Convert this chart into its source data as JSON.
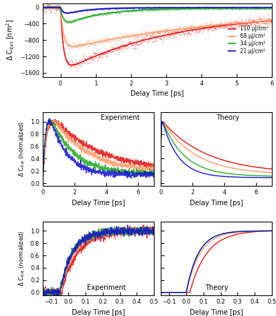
{
  "colors": {
    "red": "#dd1111",
    "orange": "#ff9966",
    "green": "#22aa22",
    "blue": "#1111cc"
  },
  "legend_labels": [
    "110 μJ/cm²",
    "68 μJ/cm²",
    "34 μJ/cm²",
    "21 μJ/cm²"
  ],
  "panel1": {
    "xlim": [
      -0.5,
      6
    ],
    "ylim": [
      -1700,
      100
    ],
    "yticks": [
      0,
      -400,
      -800,
      -1200,
      -1600
    ],
    "xlabel": "Delay Time [ps]",
    "ylabel": "Δ C_Ext [nm²]"
  },
  "panel2": {
    "xlim_exp": [
      -0.3,
      7
    ],
    "xlim_theory": [
      0,
      7
    ],
    "ylim": [
      -0.05,
      1.1
    ],
    "xlabel": "Delay Time [ps]",
    "ylabel": "Δ C_Ext (normalized)",
    "label_exp": "Experiment",
    "label_theory": "Theory"
  },
  "panel3": {
    "xlim": [
      -0.15,
      0.5
    ],
    "ylim": [
      -0.05,
      1.1
    ],
    "xlabel": "Delay Time [ps]",
    "ylabel": "Δ C_Ext (normalized)",
    "label_exp": "Experiment",
    "label_theory": "Theory"
  }
}
